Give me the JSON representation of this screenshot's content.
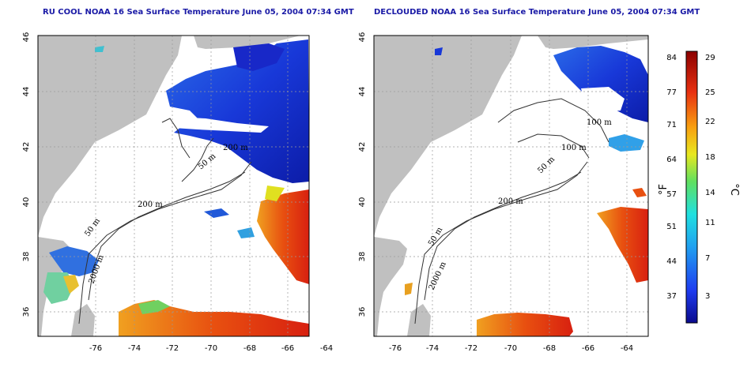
{
  "panels": [
    {
      "title": "RU COOL NOAA 16 Sea Surface Temperature June 05, 2004 07:34 GMT",
      "x_ticks": [
        "-76",
        "-74",
        "-72",
        "-70",
        "-68",
        "-66",
        "-64"
      ],
      "y_ticks": [
        "36",
        "38",
        "40",
        "42",
        "44",
        "46"
      ],
      "contour_labels": [
        "50 m",
        "200 m",
        "50 m",
        "200 m",
        "2000 m"
      ]
    },
    {
      "title": "DECLOUDED NOAA 16 Sea Surface Temperature June 05, 2004 07:34 GMT",
      "x_ticks": [
        "-76",
        "-74",
        "-72",
        "-70",
        "-68",
        "-66",
        "-64"
      ],
      "y_ticks": [
        "36",
        "38",
        "40",
        "42",
        "44",
        "46"
      ],
      "contour_labels": [
        "100 m",
        "100 m",
        "50 m",
        "200 m",
        "50 m",
        "2000 m"
      ]
    }
  ],
  "colorbar": {
    "fahrenheit_ticks": [
      "84",
      "77",
      "71",
      "64",
      "57",
      "51",
      "44",
      "37"
    ],
    "celsius_ticks": [
      "29",
      "25",
      "22",
      "18",
      "14",
      "11",
      "7",
      "3"
    ],
    "fahrenheit_unit": "°F",
    "celsius_unit": "°C"
  },
  "colors": {
    "title": "#1a1aa6",
    "land": "#c0c0c0",
    "ocean_cloud": "#ffffff",
    "cold": "#1e3cc8",
    "warm": "#e03010"
  }
}
